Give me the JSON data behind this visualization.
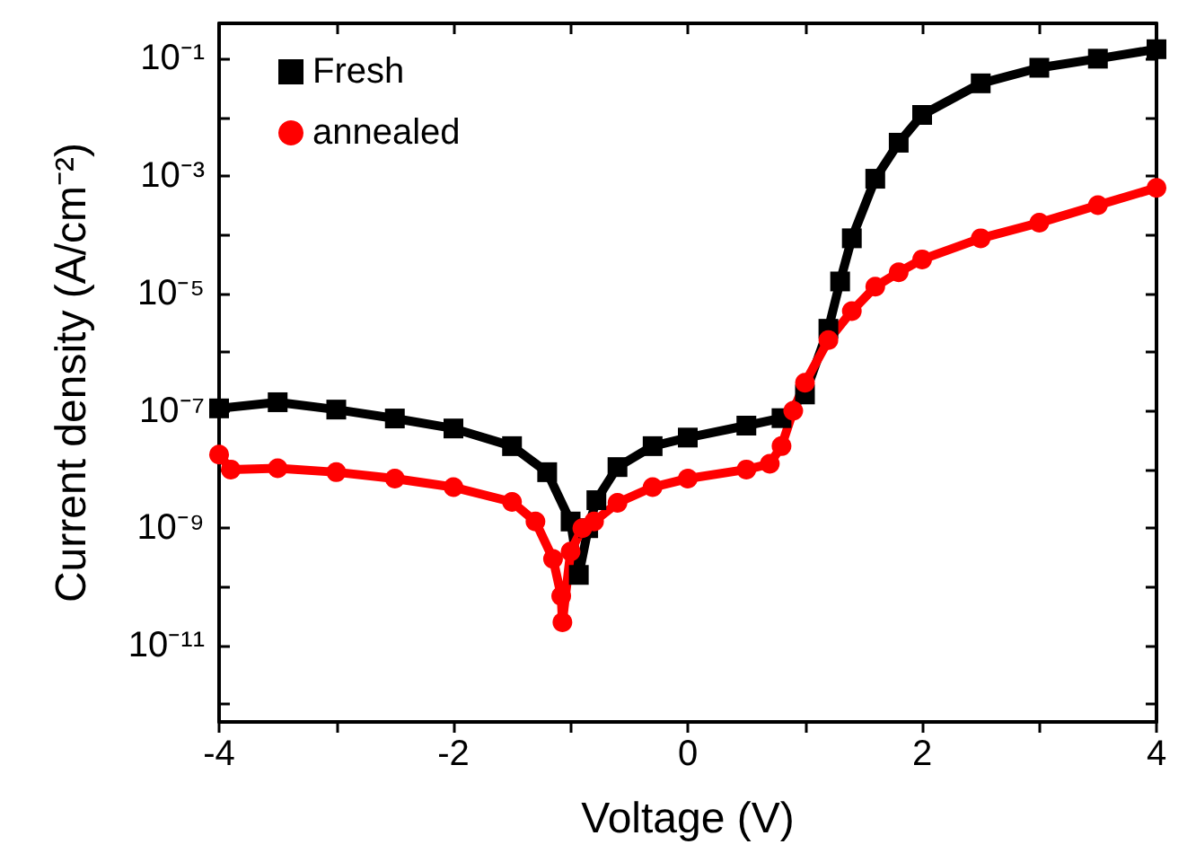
{
  "chart_data": {
    "type": "line",
    "xlabel": "Voltage (V)",
    "ylabel": "Current density (A/cm⁻²)",
    "log": "y",
    "xlim": [
      -4,
      4
    ],
    "xticks": [
      -4,
      {
        "value": -3,
        "label": null
      },
      -2,
      {
        "value": -1,
        "label": null
      },
      0,
      {
        "value": 1,
        "label": null
      },
      2,
      {
        "value": 3,
        "label": null
      },
      4
    ],
    "ylim": [
      5e-13,
      0.4
    ],
    "yticks": [
      {
        "value": 1e-12,
        "label": null
      },
      {
        "value": 1e-11,
        "label": "10⁻¹¹"
      },
      {
        "value": 1e-10,
        "label": null
      },
      {
        "value": 1e-09,
        "label": "10⁻⁹"
      },
      {
        "value": 1e-08,
        "label": null
      },
      {
        "value": 1e-07,
        "label": "10⁻⁷"
      },
      {
        "value": 1e-06,
        "label": null
      },
      {
        "value": 1e-05,
        "label": "10⁻⁵"
      },
      {
        "value": 0.0001,
        "label": null
      },
      {
        "value": 0.001,
        "label": "10⁻³"
      },
      {
        "value": 0.01,
        "label": null
      },
      {
        "value": 0.1,
        "label": "10⁻¹"
      }
    ],
    "grid": false,
    "legend": "top left",
    "series": [
      {
        "name": "Fresh",
        "color": "#000000",
        "marker": "square",
        "x": [
          -4,
          -3.5,
          -3,
          -2.5,
          -2,
          -1.5,
          -1.2,
          -1.0,
          -0.93,
          -0.85,
          -0.78,
          -0.6,
          -0.3,
          0,
          0.5,
          0.8,
          1.0,
          1.2,
          1.3,
          1.4,
          1.6,
          1.8,
          2.0,
          2.5,
          3,
          3.5,
          4
        ],
        "values": [
          1.1e-07,
          1.4e-07,
          1.05e-07,
          7.4e-08,
          5e-08,
          2.5e-08,
          9e-09,
          1.3e-09,
          1.6e-10,
          1e-09,
          3e-09,
          1.1e-08,
          2.5e-08,
          3.5e-08,
          5.6e-08,
          7.5e-08,
          1.9e-07,
          2.5e-06,
          1.6e-05,
          8.7e-05,
          0.0009,
          0.0037,
          0.011,
          0.038,
          0.07,
          0.1,
          0.145
        ]
      },
      {
        "name": "annealed",
        "color": "#ff0000",
        "marker": "circle",
        "x": [
          -4,
          -3.9,
          -3.5,
          -3,
          -2.5,
          -2,
          -1.5,
          -1.3,
          -1.15,
          -1.08,
          -1.07,
          -1.0,
          -0.9,
          -0.8,
          -0.6,
          -0.3,
          0,
          0.5,
          0.7,
          0.8,
          0.9,
          1.0,
          1.2,
          1.4,
          1.6,
          1.8,
          2.0,
          2.5,
          3,
          3.5,
          4
        ],
        "values": [
          1.8e-08,
          1e-08,
          1.05e-08,
          9e-09,
          7e-09,
          5e-09,
          2.8e-09,
          1.3e-09,
          3e-10,
          7e-11,
          2.5e-11,
          4e-10,
          1e-09,
          1.3e-09,
          2.7e-09,
          5e-09,
          7e-09,
          1e-08,
          1.25e-08,
          2.5e-08,
          1e-07,
          3e-07,
          1.6e-06,
          5e-06,
          1.3e-05,
          2.3e-05,
          3.8e-05,
          8.7e-05,
          0.00016,
          0.00032,
          0.00063
        ]
      }
    ]
  }
}
